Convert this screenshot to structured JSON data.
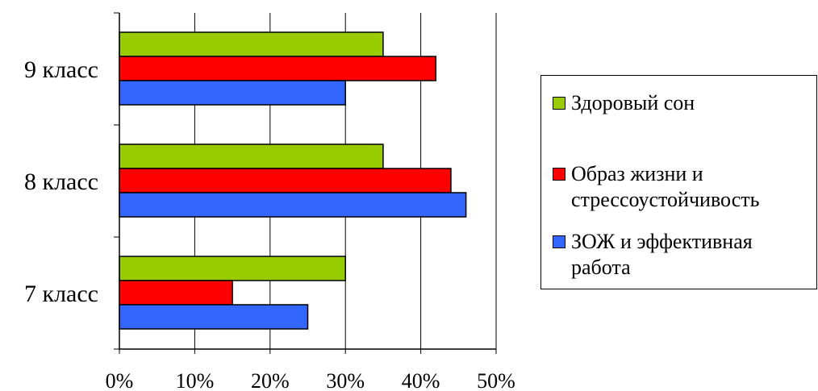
{
  "chart_data": {
    "type": "bar",
    "orientation": "horizontal",
    "categories": [
      "9 класс",
      "8 класс",
      "7 класс"
    ],
    "series": [
      {
        "name": "Здоровый сон",
        "color": "#99CC00",
        "values": [
          35,
          35,
          30
        ]
      },
      {
        "name": "Образ жизни и стрессоустойчивость",
        "color": "#FF0000",
        "values": [
          42,
          44,
          15
        ]
      },
      {
        "name": "ЗОЖ и эффективная работа",
        "color": "#3366FF",
        "values": [
          30,
          46,
          25
        ]
      }
    ],
    "x_ticks": [
      "0%",
      "10%",
      "20%",
      "30%",
      "40%",
      "50%"
    ],
    "xlim": [
      0,
      50
    ],
    "unit": "%",
    "grid": true,
    "legend_position": "right"
  },
  "legend": {
    "items": [
      {
        "label_lines": [
          "Здоровый сон"
        ],
        "color": "#99CC00"
      },
      {
        "label_lines": [
          "Образ жизни и",
          "стрессоустойчивость"
        ],
        "color": "#FF0000"
      },
      {
        "label_lines": [
          "ЗОЖ и эффективная",
          "работа"
        ],
        "color": "#3366FF"
      }
    ]
  }
}
